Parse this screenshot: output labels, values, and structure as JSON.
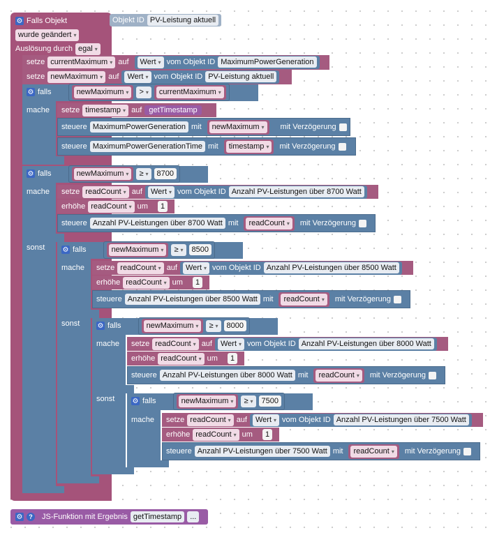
{
  "event": {
    "title": "Falls Objekt",
    "object_id_label": "Objekt ID",
    "object_id_value": "PV-Leistung aktuell",
    "trigger": "wurde geändert",
    "trigger_by_label": "Auslösung durch",
    "trigger_by_value": "egal"
  },
  "set1": {
    "setze": "setze",
    "var": "currentMaximum",
    "auf": "auf",
    "wert": "Wert",
    "vom": "vom Objekt ID",
    "obj": "MaximumPowerGeneration"
  },
  "set2": {
    "setze": "setze",
    "var": "newMaximum",
    "auf": "auf",
    "wert": "Wert",
    "vom": "vom Objekt ID",
    "obj": "PV-Leistung aktuell"
  },
  "if1": {
    "falls": "falls",
    "mache": "mache",
    "left": "newMaximum",
    "op": ">",
    "right": "currentMaximum",
    "set_setze": "setze",
    "set_var": "timestamp",
    "set_auf": "auf",
    "set_func": "getTimestamp",
    "st1_label": "steuere",
    "st1_obj": "MaximumPowerGeneration",
    "st1_mit": "mit",
    "st1_val": "newMaximum",
    "st1_delay": "mit Verzögerung",
    "st2_label": "steuere",
    "st2_obj": "MaximumPowerGenerationTime",
    "st2_mit": "mit",
    "st2_val": "timestamp",
    "st2_delay": "mit Verzögerung"
  },
  "if2": {
    "falls": "falls",
    "mache": "mache",
    "sonst": "sonst",
    "left": "newMaximum",
    "op": "≥",
    "right": "8700",
    "set_setze": "setze",
    "set_var": "readCount",
    "set_auf": "auf",
    "set_wert": "Wert",
    "set_vom": "vom Objekt ID",
    "set_obj": "Anzahl PV-Leistungen über 8700 Watt",
    "inc_label": "erhöhe",
    "inc_var": "readCount",
    "inc_um": "um",
    "inc_val": "1",
    "st_label": "steuere",
    "st_obj": "Anzahl PV-Leistungen über 8700 Watt",
    "st_mit": "mit",
    "st_val": "readCount",
    "st_delay": "mit Verzögerung"
  },
  "if3": {
    "falls": "falls",
    "mache": "mache",
    "sonst": "sonst",
    "left": "newMaximum",
    "op": "≥",
    "right": "8500",
    "set_setze": "setze",
    "set_var": "readCount",
    "set_auf": "auf",
    "set_wert": "Wert",
    "set_vom": "vom Objekt ID",
    "set_obj": "Anzahl PV-Leistungen über 8500 Watt",
    "inc_label": "erhöhe",
    "inc_var": "readCount",
    "inc_um": "um",
    "inc_val": "1",
    "st_label": "steuere",
    "st_obj": "Anzahl PV-Leistungen über 8500 Watt",
    "st_mit": "mit",
    "st_val": "readCount",
    "st_delay": "mit Verzögerung"
  },
  "if4": {
    "falls": "falls",
    "mache": "mache",
    "sonst": "sonst",
    "left": "newMaximum",
    "op": "≥",
    "right": "8000",
    "set_setze": "setze",
    "set_var": "readCount",
    "set_auf": "auf",
    "set_wert": "Wert",
    "set_vom": "vom Objekt ID",
    "set_obj": "Anzahl PV-Leistungen über 8000 Watt",
    "inc_label": "erhöhe",
    "inc_var": "readCount",
    "inc_um": "um",
    "inc_val": "1",
    "st_label": "steuere",
    "st_obj": "Anzahl PV-Leistungen über 8000 Watt",
    "st_mit": "mit",
    "st_val": "readCount",
    "st_delay": "mit Verzögerung"
  },
  "if5": {
    "falls": "falls",
    "mache": "mache",
    "left": "newMaximum",
    "op": "≥",
    "right": "7500",
    "set_setze": "setze",
    "set_var": "readCount",
    "set_auf": "auf",
    "set_wert": "Wert",
    "set_vom": "vom Objekt ID",
    "set_obj": "Anzahl PV-Leistungen über 7500 Watt",
    "inc_label": "erhöhe",
    "inc_var": "readCount",
    "inc_um": "um",
    "inc_val": "1",
    "st_label": "steuere",
    "st_obj": "Anzahl PV-Leistungen über 7500 Watt",
    "st_mit": "mit",
    "st_val": "readCount",
    "st_delay": "mit Verzögerung"
  },
  "jsfunc": {
    "label": "JS-Funktion mit Ergebnis",
    "name": "getTimestamp",
    "more": "..."
  },
  "colors": {
    "event": "#a5537a",
    "control": "#5b80a5",
    "variable": "#a55b80",
    "procedure": "#995ba5",
    "gear": "#3b67c4"
  }
}
